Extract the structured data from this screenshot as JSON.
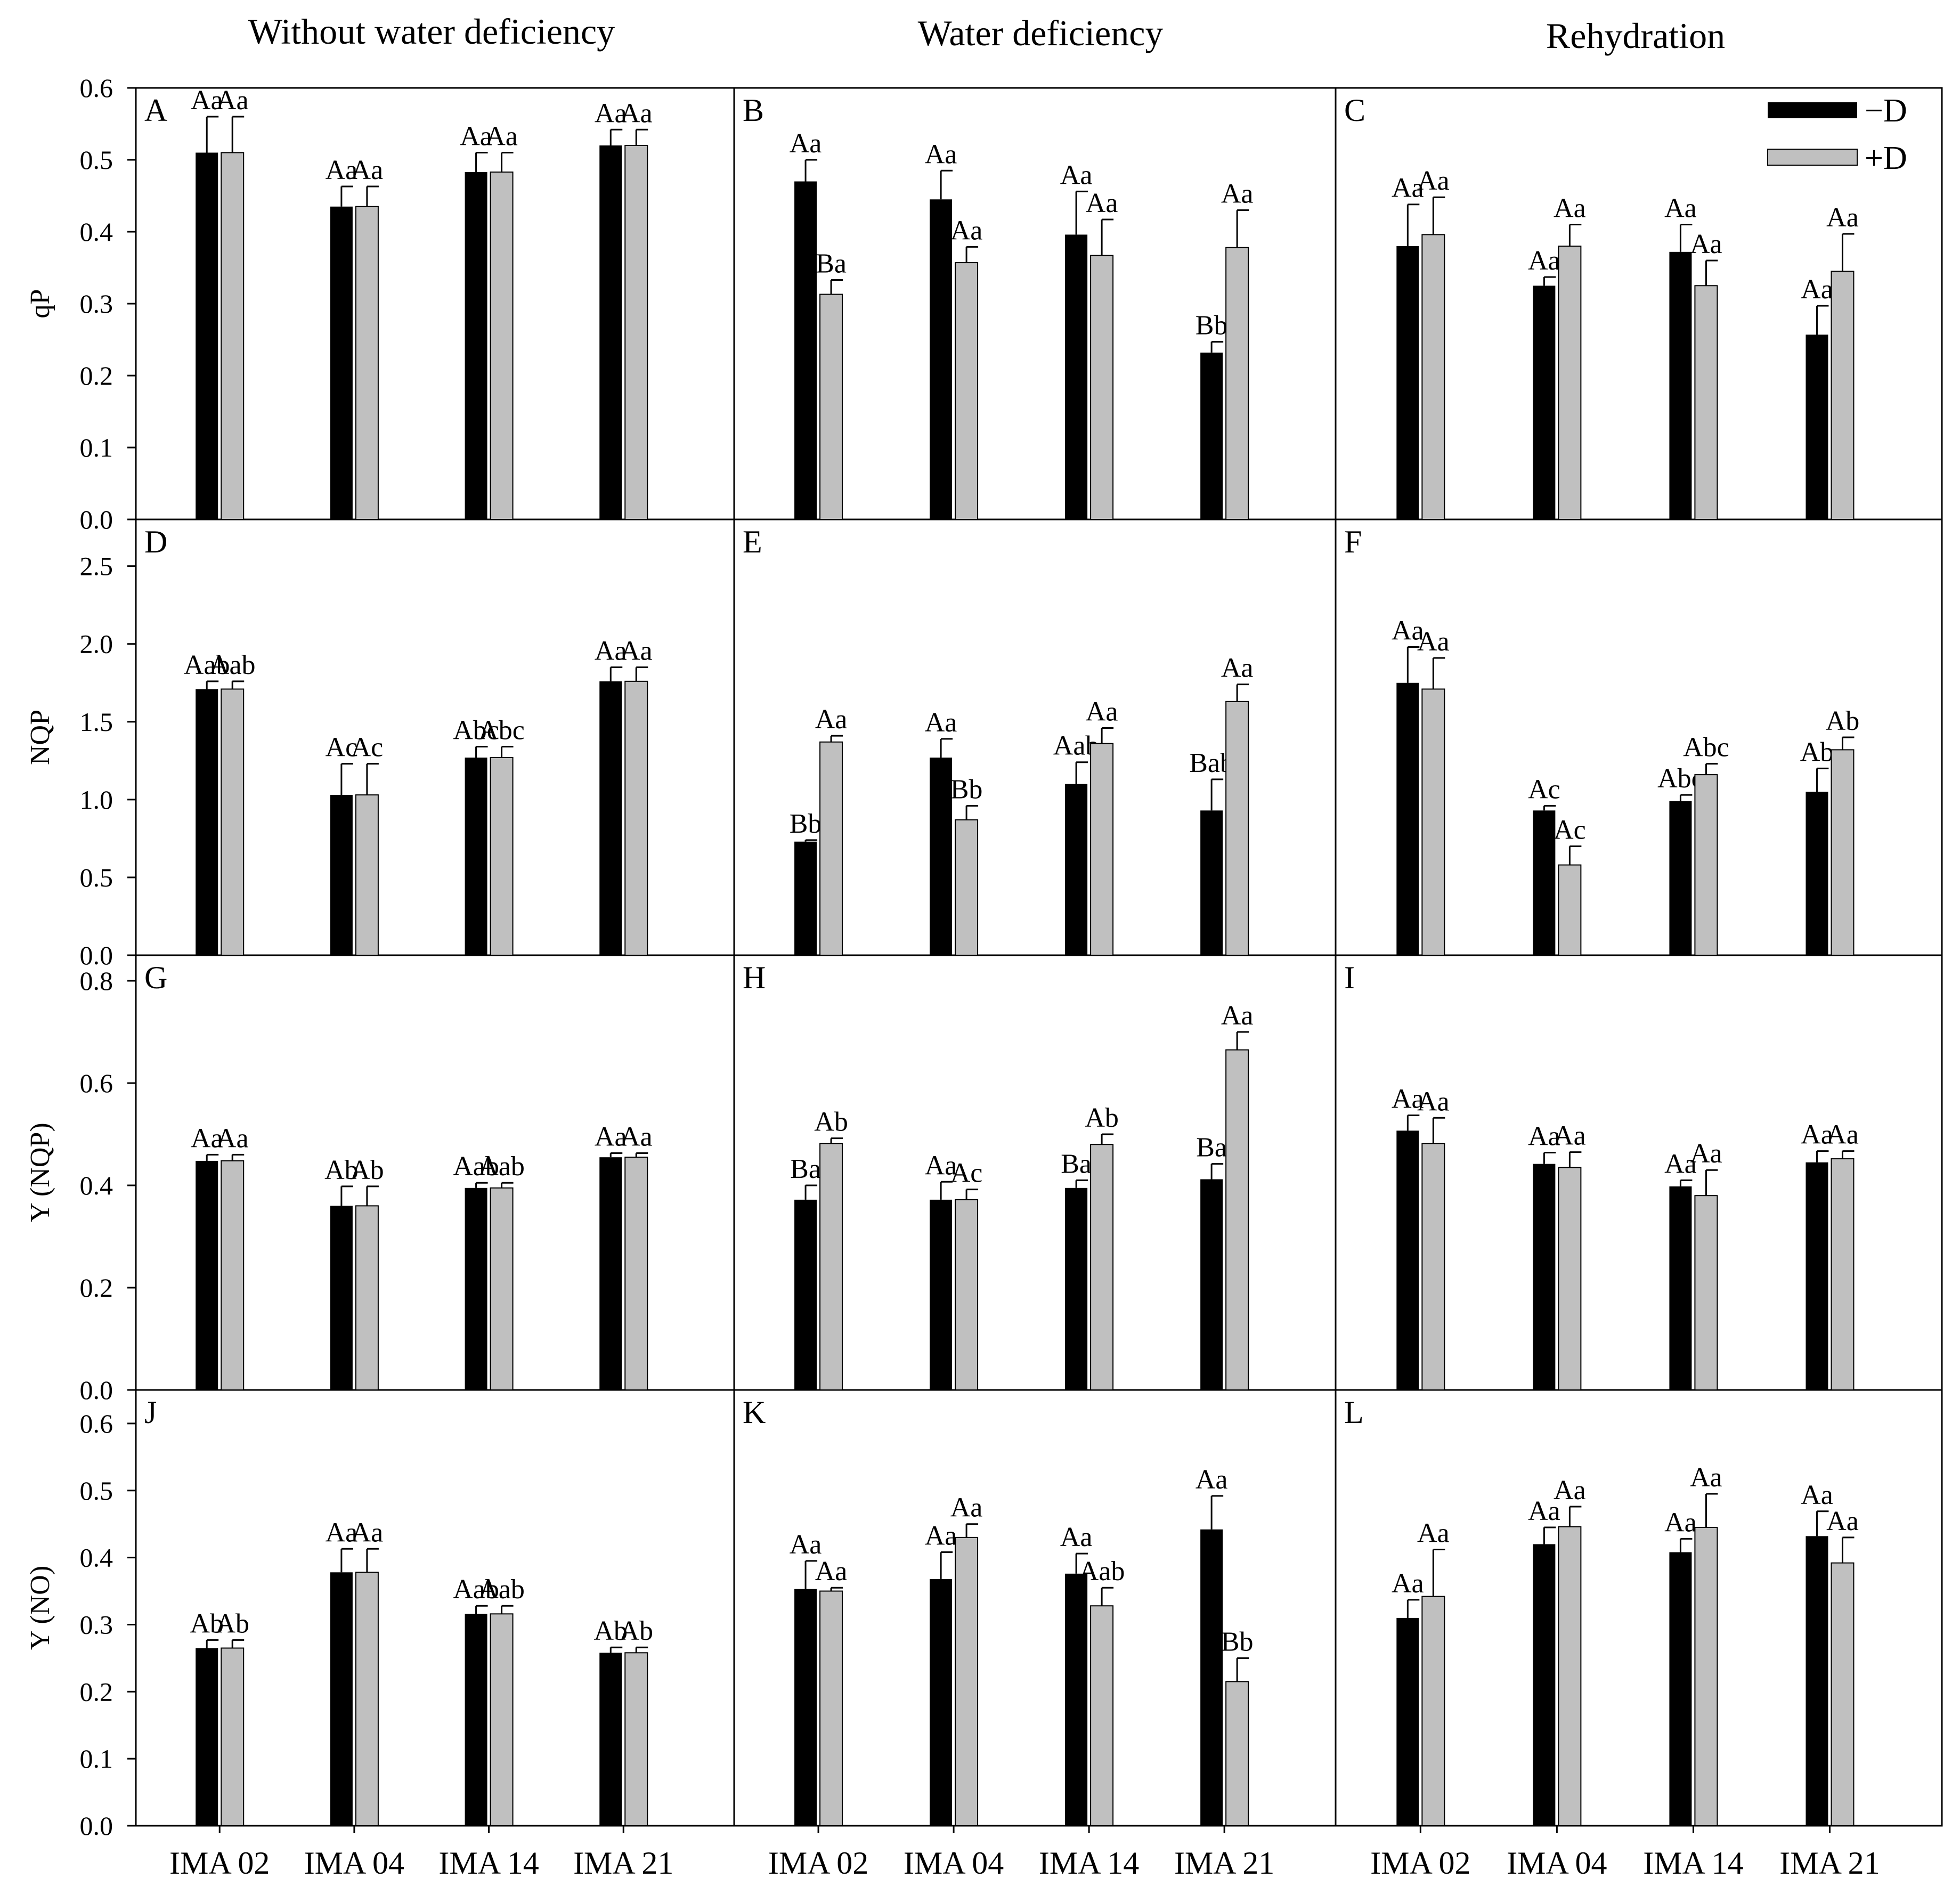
{
  "colors": {
    "minusD": "#000000",
    "plusD": "#c0c0c0",
    "axis": "#000000"
  },
  "column_titles": [
    "Without water deficiency",
    "Water deficiency",
    "Rehydration"
  ],
  "legend": {
    "minus": "−D",
    "plus": "+D"
  },
  "chart_data": {
    "type": "bar",
    "categories": [
      "IMA 02",
      "IMA 04",
      "IMA 14",
      "IMA 21"
    ],
    "rows": [
      {
        "ylabel": "qP",
        "ylim": [
          0,
          0.6
        ],
        "yticks": [
          "0.0",
          "0.1",
          "0.2",
          "0.3",
          "0.4",
          "0.5",
          "0.6"
        ]
      },
      {
        "ylabel": "NQP",
        "ylim": [
          0,
          2.8
        ],
        "yticks": [
          "0.0",
          "0.5",
          "1.0",
          "1.5",
          "2.0",
          "2.5"
        ]
      },
      {
        "ylabel": "Y (NQP)",
        "ylim": [
          0,
          0.85
        ],
        "yticks": [
          "0.0",
          "0.2",
          "0.4",
          "0.6",
          "0.8"
        ]
      },
      {
        "ylabel": "Y (NO)",
        "ylim": [
          0,
          0.65
        ],
        "yticks": [
          "0.0",
          "0.1",
          "0.2",
          "0.3",
          "0.4",
          "0.5",
          "0.6"
        ]
      }
    ],
    "panels": [
      {
        "letter": "A",
        "row": 0,
        "col": 0,
        "minus": {
          "values": [
            0.51,
            0.435,
            0.483,
            0.52
          ],
          "errors": [
            0.05,
            0.028,
            0.027,
            0.022
          ],
          "labels": [
            "Aa",
            "Aa",
            "Aa",
            "Aa"
          ]
        },
        "plus": {
          "values": [
            0.51,
            0.435,
            0.483,
            0.52
          ],
          "errors": [
            0.05,
            0.028,
            0.027,
            0.022
          ],
          "labels": [
            "Aa",
            "Aa",
            "Aa",
            "Aa"
          ]
        }
      },
      {
        "letter": "B",
        "row": 0,
        "col": 1,
        "minus": {
          "values": [
            0.47,
            0.445,
            0.396,
            0.232
          ],
          "errors": [
            0.03,
            0.04,
            0.06,
            0.015
          ],
          "labels": [
            "Aa",
            "Aa",
            "Aa",
            "Bb"
          ]
        },
        "plus": {
          "values": [
            0.313,
            0.357,
            0.367,
            0.378
          ],
          "errors": [
            0.02,
            0.022,
            0.05,
            0.052
          ],
          "labels": [
            "Ba",
            "Aa",
            "Aa",
            "Aa"
          ]
        }
      },
      {
        "letter": "C",
        "row": 0,
        "col": 2,
        "minus": {
          "values": [
            0.38,
            0.325,
            0.372,
            0.257
          ],
          "errors": [
            0.058,
            0.012,
            0.038,
            0.04
          ],
          "labels": [
            "Aa",
            "Aa",
            "Aa",
            "Aa"
          ]
        },
        "plus": {
          "values": [
            0.396,
            0.38,
            0.325,
            0.345
          ],
          "errors": [
            0.052,
            0.03,
            0.035,
            0.052
          ],
          "labels": [
            "Aa",
            "Aa",
            "Aa",
            "Aa"
          ]
        }
      },
      {
        "letter": "D",
        "row": 1,
        "col": 0,
        "minus": {
          "values": [
            1.71,
            1.03,
            1.27,
            1.76
          ],
          "errors": [
            0.05,
            0.2,
            0.07,
            0.09
          ],
          "labels": [
            "Aab",
            "Ac",
            "Abc",
            "Aa"
          ]
        },
        "plus": {
          "values": [
            1.71,
            1.03,
            1.27,
            1.76
          ],
          "errors": [
            0.05,
            0.2,
            0.07,
            0.09
          ],
          "labels": [
            "Aab",
            "Ac",
            "Abc",
            "Aa"
          ]
        }
      },
      {
        "letter": "E",
        "row": 1,
        "col": 1,
        "minus": {
          "values": [
            0.73,
            1.27,
            1.1,
            0.93
          ],
          "errors": [
            0.01,
            0.12,
            0.14,
            0.2
          ],
          "labels": [
            "Bb",
            "Aa",
            "Aab",
            "Bab"
          ]
        },
        "plus": {
          "values": [
            1.37,
            0.87,
            1.36,
            1.63
          ],
          "errors": [
            0.04,
            0.09,
            0.1,
            0.11
          ],
          "labels": [
            "Aa",
            "Bb",
            "Aa",
            "Aa"
          ]
        }
      },
      {
        "letter": "F",
        "row": 1,
        "col": 2,
        "minus": {
          "values": [
            1.75,
            0.93,
            0.99,
            1.05
          ],
          "errors": [
            0.23,
            0.03,
            0.04,
            0.15
          ],
          "labels": [
            "Aa",
            "Ac",
            "Abc",
            "Ab"
          ]
        },
        "plus": {
          "values": [
            1.71,
            0.58,
            1.16,
            1.32
          ],
          "errors": [
            0.2,
            0.12,
            0.07,
            0.08
          ],
          "labels": [
            "Aa",
            "Ac",
            "Abc",
            "Ab"
          ]
        }
      },
      {
        "letter": "G",
        "row": 2,
        "col": 0,
        "minus": {
          "values": [
            0.448,
            0.36,
            0.395,
            0.455
          ],
          "errors": [
            0.012,
            0.038,
            0.01,
            0.008
          ],
          "labels": [
            "Aa",
            "Ab",
            "Aab",
            "Aa"
          ]
        },
        "plus": {
          "values": [
            0.448,
            0.36,
            0.395,
            0.455
          ],
          "errors": [
            0.012,
            0.038,
            0.01,
            0.008
          ],
          "labels": [
            "Aa",
            "Ab",
            "Aab",
            "Aa"
          ]
        }
      },
      {
        "letter": "H",
        "row": 2,
        "col": 1,
        "minus": {
          "values": [
            0.372,
            0.372,
            0.395,
            0.412
          ],
          "errors": [
            0.028,
            0.035,
            0.015,
            0.03
          ],
          "labels": [
            "Ba",
            "Aa",
            "Ba",
            "Ba"
          ]
        },
        "plus": {
          "values": [
            0.482,
            0.372,
            0.48,
            0.665
          ],
          "errors": [
            0.01,
            0.02,
            0.02,
            0.035
          ],
          "labels": [
            "Ab",
            "Ac",
            "Ab",
            "Aa"
          ]
        }
      },
      {
        "letter": "I",
        "row": 2,
        "col": 2,
        "minus": {
          "values": [
            0.507,
            0.442,
            0.398,
            0.445
          ],
          "errors": [
            0.03,
            0.022,
            0.012,
            0.022
          ],
          "labels": [
            "Aa",
            "Aa",
            "Aa",
            "Aa"
          ]
        },
        "plus": {
          "values": [
            0.482,
            0.435,
            0.38,
            0.452
          ],
          "errors": [
            0.05,
            0.03,
            0.05,
            0.015
          ],
          "labels": [
            "Aa",
            "Aa",
            "Aa",
            "Aa"
          ]
        }
      },
      {
        "letter": "J",
        "row": 3,
        "col": 0,
        "minus": {
          "values": [
            0.265,
            0.378,
            0.316,
            0.258
          ],
          "errors": [
            0.012,
            0.035,
            0.012,
            0.008
          ],
          "labels": [
            "Ab",
            "Aa",
            "Aab",
            "Ab"
          ]
        },
        "plus": {
          "values": [
            0.265,
            0.378,
            0.316,
            0.258
          ],
          "errors": [
            0.012,
            0.035,
            0.012,
            0.008
          ],
          "labels": [
            "Ab",
            "Aa",
            "Aab",
            "Ab"
          ]
        }
      },
      {
        "letter": "K",
        "row": 3,
        "col": 1,
        "minus": {
          "values": [
            0.353,
            0.368,
            0.376,
            0.442
          ],
          "errors": [
            0.042,
            0.04,
            0.03,
            0.05
          ],
          "labels": [
            "Aa",
            "Aa",
            "Aa",
            "Aa"
          ]
        },
        "plus": {
          "values": [
            0.35,
            0.43,
            0.328,
            0.215
          ],
          "errors": [
            0.005,
            0.02,
            0.027,
            0.035
          ],
          "labels": [
            "Aa",
            "Aa",
            "Aab",
            "Bb"
          ]
        }
      },
      {
        "letter": "L",
        "row": 3,
        "col": 2,
        "minus": {
          "values": [
            0.31,
            0.42,
            0.408,
            0.432
          ],
          "errors": [
            0.027,
            0.025,
            0.02,
            0.037
          ],
          "labels": [
            "Aa",
            "Aa",
            "Aa",
            "Aa"
          ]
        },
        "plus": {
          "values": [
            0.342,
            0.446,
            0.445,
            0.392
          ],
          "errors": [
            0.07,
            0.03,
            0.05,
            0.038
          ],
          "labels": [
            "Aa",
            "Aa",
            "Aa",
            "Aa"
          ]
        }
      }
    ]
  }
}
